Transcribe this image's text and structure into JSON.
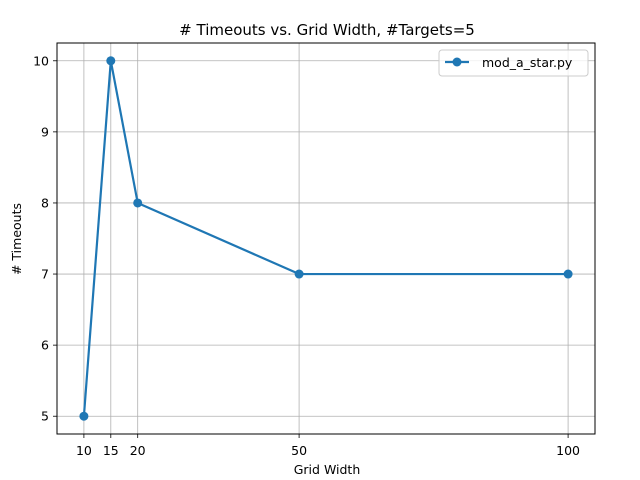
{
  "chart_data": {
    "type": "line",
    "title": "# Timeouts vs. Grid Width, #Targets=5",
    "xlabel": "Grid Width",
    "ylabel": "# Timeouts",
    "x": [
      10,
      15,
      20,
      50,
      100
    ],
    "xticks": [
      10,
      15,
      20,
      50,
      100
    ],
    "yticks": [
      5,
      6,
      7,
      8,
      9,
      10
    ],
    "xlim": [
      5,
      105
    ],
    "ylim": [
      4.75,
      10.25
    ],
    "grid": true,
    "legend_position": "top-right",
    "series": [
      {
        "name": "mod_a_star.py",
        "color": "#1f77b4",
        "values": [
          5,
          10,
          8,
          7,
          7
        ]
      }
    ]
  }
}
